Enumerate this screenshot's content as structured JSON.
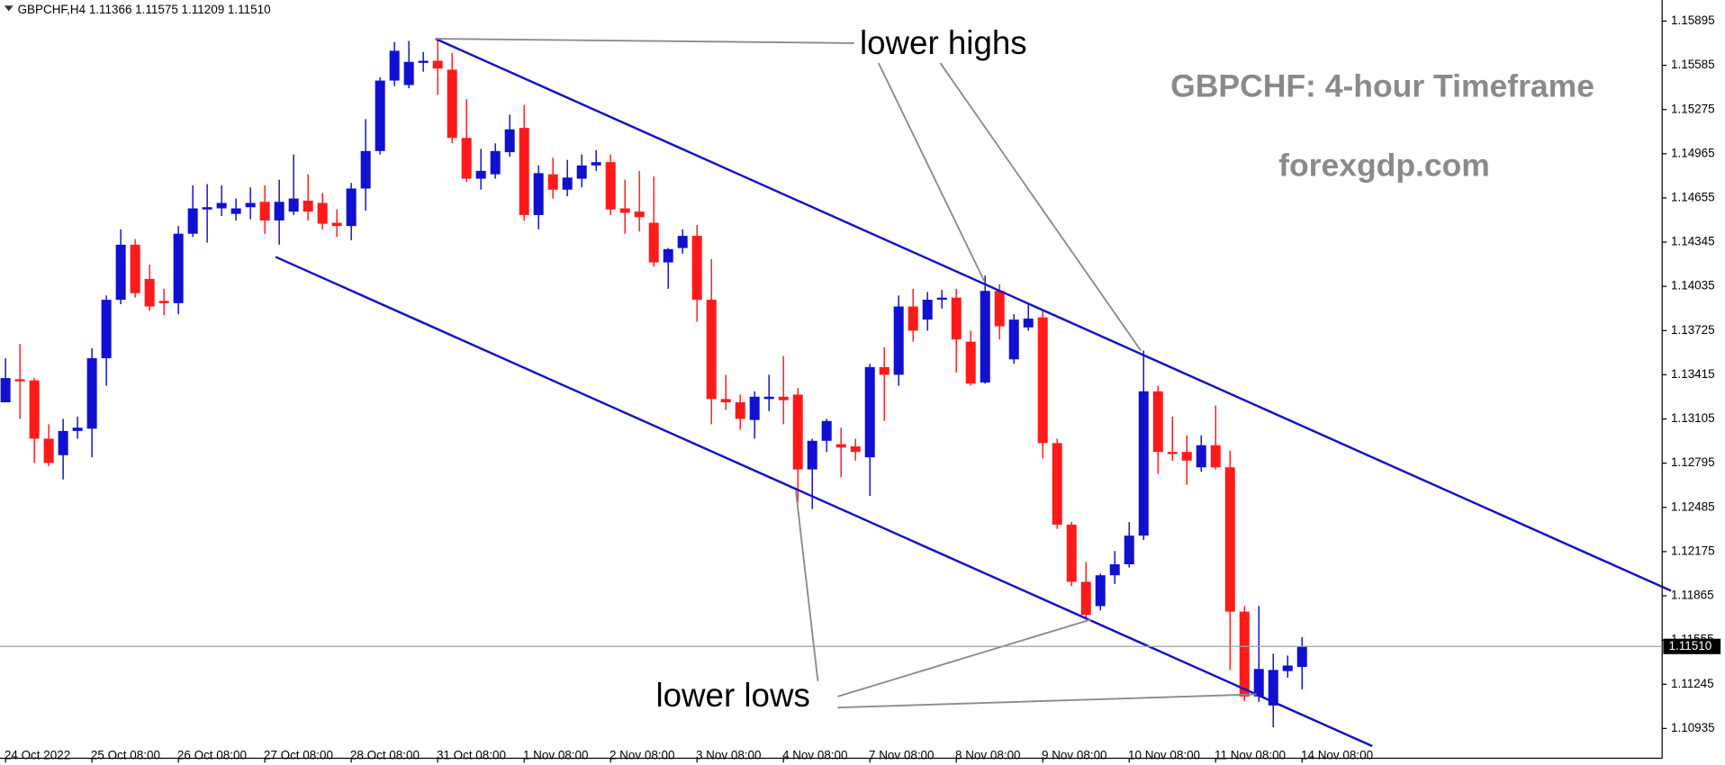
{
  "chart_data": {
    "type": "candlestick",
    "header": "GBPCHF,H4  1.11366 1.11575 1.11209 1.11510",
    "annotations": [
      "lower highs",
      "lower lows"
    ],
    "title": "GBPCHF: 4-hour Timeframe",
    "subtitle": "forexgdp.com",
    "up_color": "#1010d0",
    "down_color": "#ff1a1a",
    "categories": [
      "24 Oct 2022",
      null,
      null,
      null,
      null,
      null,
      "25 Oct 08:00",
      null,
      null,
      null,
      null,
      null,
      "26 Oct 08:00",
      null,
      null,
      null,
      null,
      null,
      "27 Oct 08:00",
      null,
      null,
      null,
      null,
      null,
      "28 Oct 08:00",
      null,
      null,
      null,
      null,
      null,
      "31 Oct 08:00",
      null,
      null,
      null,
      null,
      null,
      "1 Nov 08:00",
      null,
      null,
      null,
      null,
      null,
      "2 Nov 08:00",
      null,
      null,
      null,
      null,
      null,
      "3 Nov 08:00",
      null,
      null,
      null,
      null,
      null,
      "4 Nov 08:00",
      null,
      null,
      null,
      null,
      null,
      "7 Nov 08:00",
      null,
      null,
      null,
      null,
      null,
      "8 Nov 08:00",
      null,
      null,
      null,
      null,
      null,
      "9 Nov 08:00",
      null,
      null,
      null,
      null,
      null,
      "10 Nov 08:00",
      null,
      null,
      null,
      null,
      null,
      "11 Nov 08:00",
      null,
      null,
      null,
      null,
      null,
      "14 Nov 08:00"
    ],
    "open": [
      1.13222,
      1.13384,
      1.13376,
      1.12967,
      1.12851,
      1.13021,
      1.13037,
      1.13531,
      1.13941,
      1.14327,
      1.14087,
      1.13933,
      1.13917,
      1.14404,
      1.14574,
      1.14582,
      1.14543,
      1.1459,
      1.14628,
      1.14497,
      1.14559,
      1.14636,
      1.1462,
      1.14481,
      1.14458,
      1.14721,
      1.14984,
      1.15478,
      1.15447,
      1.15602,
      1.15617,
      1.15555,
      1.15076,
      1.1479,
      1.14821,
      1.14976,
      1.15146,
      1.14535,
      1.14821,
      1.14713,
      1.1479,
      1.14883,
      1.14906,
      1.14582,
      1.14559,
      1.14481,
      1.14203,
      1.14304,
      1.14389,
      1.13941,
      1.13245,
      1.13222,
      1.13098,
      1.13245,
      1.13261,
      1.13276,
      1.12751,
      1.12952,
      1.12928,
      1.12913,
      1.12836,
      1.13469,
      1.13415,
      1.13894,
      1.13802,
      1.13941,
      1.13956,
      1.13647,
      1.13361,
      1.14003,
      1.13523,
      1.13747,
      1.13817,
      1.12936,
      1.12364,
      1.11963,
      1.11793,
      1.12009,
      1.12086,
      1.12287,
      1.13299,
      1.12874,
      1.12874,
      1.12766,
      1.12921,
      1.12766,
      1.11754,
      1.11159,
      1.11096,
      1.11337,
      1.11366
    ],
    "high": [
      1.13531,
      1.13631,
      1.13392,
      1.13068,
      1.13106,
      1.13122,
      1.13601,
      1.13971,
      1.14435,
      1.14366,
      1.14188,
      1.14018,
      1.14458,
      1.14744,
      1.14752,
      1.14744,
      1.14651,
      1.14729,
      1.14744,
      1.14783,
      1.1496,
      1.14821,
      1.1469,
      1.14574,
      1.1476,
      1.15208,
      1.15501,
      1.15748,
      1.15756,
      1.15679,
      1.15779,
      1.15671,
      1.15347,
      1.14999,
      1.15038,
      1.15239,
      1.15308,
      1.14883,
      1.14937,
      1.14922,
      1.1496,
      1.14991,
      1.1496,
      1.14783,
      1.14845,
      1.14806,
      1.14304,
      1.14435,
      1.14466,
      1.14226,
      1.13415,
      1.13276,
      1.13299,
      1.13415,
      1.13546,
      1.13322,
      1.12967,
      1.13106,
      1.13044,
      1.12967,
      1.13492,
      1.13608,
      1.13971,
      1.14018,
      1.13995,
      1.1401,
      1.14018,
      1.13724,
      1.14111,
      1.14049,
      1.1384,
      1.13917,
      1.13863,
      1.12967,
      1.12382,
      1.12102,
      1.12021,
      1.12179,
      1.12382,
      1.13585,
      1.13338,
      1.13122,
      1.1299,
      1.1299,
      1.13199,
      1.12882,
      1.11793,
      1.11793,
      1.11459,
      1.11446,
      1.11575
    ],
    "low": [
      1.13222,
      1.13106,
      1.12797,
      1.12774,
      1.12681,
      1.12967,
      1.12836,
      1.13338,
      1.1391,
      1.13956,
      1.13863,
      1.13832,
      1.1384,
      1.14381,
      1.14342,
      1.14528,
      1.14497,
      1.14505,
      1.14404,
      1.14327,
      1.14535,
      1.14497,
      1.14435,
      1.14381,
      1.14358,
      1.14566,
      1.1496,
      1.15439,
      1.15424,
      1.1554,
      1.15378,
      1.15038,
      1.14767,
      1.14713,
      1.1479,
      1.14945,
      1.14497,
      1.14435,
      1.14651,
      1.14667,
      1.14729,
      1.14845,
      1.14535,
      1.14404,
      1.1442,
      1.14172,
      1.14018,
      1.14265,
      1.13786,
      1.13068,
      1.13168,
      1.13029,
      1.12967,
      1.1316,
      1.13068,
      1.12519,
      1.12473,
      1.12874,
      1.12697,
      1.12813,
      1.12565,
      1.13091,
      1.13338,
      1.13647,
      1.13724,
      1.13879,
      1.13431,
      1.13338,
      1.13353,
      1.13662,
      1.13492,
      1.13724,
      1.12828,
      1.12334,
      1.11932,
      1.117,
      1.11762,
      1.11947,
      1.12063,
      1.12256,
      1.1272,
      1.12813,
      1.12643,
      1.12735,
      1.12751,
      1.11345,
      1.11128,
      1.11121,
      1.10943,
      1.11291,
      1.11209
    ],
    "close": [
      1.13392,
      1.13369,
      1.12967,
      1.12797,
      1.13021,
      1.13044,
      1.13531,
      1.13941,
      1.14327,
      1.13987,
      1.13894,
      1.13917,
      1.14404,
      1.14582,
      1.1459,
      1.1462,
      1.14582,
      1.1462,
      1.14497,
      1.14628,
      1.14651,
      1.14559,
      1.14474,
      1.14458,
      1.14721,
      1.14984,
      1.15478,
      1.15687,
      1.15609,
      1.15617,
      1.15563,
      1.15076,
      1.1479,
      1.14845,
      1.14984,
      1.15136,
      1.14535,
      1.14829,
      1.14713,
      1.14798,
      1.14883,
      1.14906,
      1.14574,
      1.14551,
      1.1452,
      1.14203,
      1.14296,
      1.14389,
      1.13941,
      1.13245,
      1.13222,
      1.13106,
      1.13261,
      1.13261,
      1.13237,
      1.12751,
      1.12952,
      1.13091,
      1.12905,
      1.12874,
      1.13469,
      1.13415,
      1.13894,
      1.13724,
      1.13941,
      1.13956,
      1.13662,
      1.13353,
      1.14003,
      1.13755,
      1.13802,
      1.13809,
      1.12936,
      1.12364,
      1.11963,
      1.11731,
      1.12009,
      1.12086,
      1.12287,
      1.13299,
      1.12874,
      1.12859,
      1.12813,
      1.12921,
      1.12766,
      1.11754,
      1.11159,
      1.11352,
      1.11345,
      1.11376,
      1.1151
    ],
    "ylim": [
      1.10726,
      1.16042
    ],
    "yticks": [
      1.15895,
      1.15585,
      1.15275,
      1.14965,
      1.14655,
      1.14345,
      1.14035,
      1.13725,
      1.13415,
      1.13105,
      1.12795,
      1.12485,
      1.12175,
      1.11865,
      1.11555,
      1.11245,
      1.10935
    ],
    "current_price": {
      "value": 1.1151,
      "label": "1.11510"
    }
  }
}
